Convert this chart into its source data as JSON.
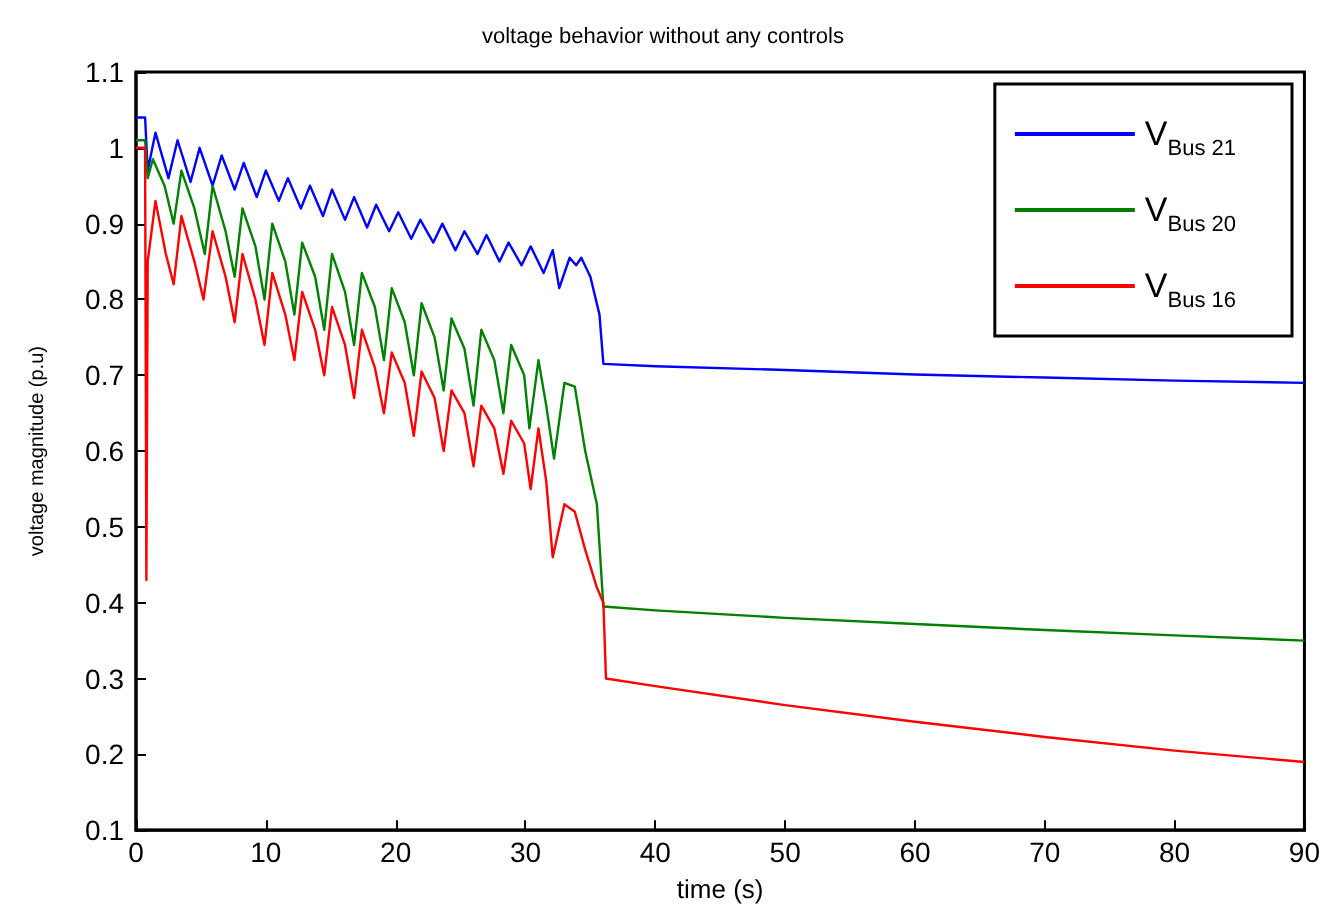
{
  "chart_data": {
    "type": "line",
    "title": "voltage behavior without any controls",
    "xlabel": "time (s)",
    "ylabel": "voltage magnitude (p.u)",
    "xlim": [
      0,
      90
    ],
    "xticks": [
      0,
      10,
      20,
      30,
      40,
      50,
      60,
      70,
      80,
      90
    ],
    "ylim": [
      0.1,
      1.1
    ],
    "yticks": [
      0.1,
      0.2,
      0.3,
      0.4,
      0.5,
      0.6,
      0.7,
      0.8,
      0.9,
      1,
      1.1
    ],
    "grid": false,
    "legend": "top right",
    "marker": "none",
    "line_style": "solid",
    "series": [
      {
        "name": "V$_{Bus 21}$",
        "color": "#0000ff",
        "x": [
          0,
          0.7,
          0.9,
          1.5,
          2.5,
          3.2,
          4.2,
          4.9,
          5.9,
          6.6,
          7.6,
          8.3,
          9.3,
          10,
          11,
          11.7,
          12.7,
          13.4,
          14.4,
          15.1,
          16.1,
          16.8,
          17.8,
          18.5,
          19.5,
          20.2,
          21.2,
          21.9,
          22.9,
          23.6,
          24.6,
          25.3,
          26.3,
          27,
          28,
          28.7,
          29.7,
          30.4,
          31.4,
          32.1,
          32.6,
          33.4,
          33.9,
          34.3,
          35,
          35.7,
          36,
          40,
          50,
          60,
          70,
          80,
          90
        ],
        "values": [
          1.04,
          1.04,
          0.97,
          1.02,
          0.96,
          1.01,
          0.955,
          1.0,
          0.95,
          0.99,
          0.945,
          0.98,
          0.935,
          0.97,
          0.93,
          0.96,
          0.92,
          0.95,
          0.91,
          0.945,
          0.905,
          0.935,
          0.895,
          0.925,
          0.89,
          0.915,
          0.88,
          0.905,
          0.875,
          0.9,
          0.865,
          0.89,
          0.86,
          0.885,
          0.85,
          0.875,
          0.845,
          0.87,
          0.835,
          0.865,
          0.815,
          0.855,
          0.845,
          0.855,
          0.83,
          0.78,
          0.715,
          0.712,
          0.707,
          0.701,
          0.697,
          0.693,
          0.69
        ]
      },
      {
        "name": "V$_{Bus 20}$",
        "color": "#008000",
        "x": [
          0,
          0.7,
          0.9,
          1.3,
          2.2,
          2.9,
          3.5,
          4.5,
          5.3,
          5.9,
          6.9,
          7.6,
          8.2,
          9.2,
          9.9,
          10.5,
          11.5,
          12.2,
          12.8,
          13.8,
          14.5,
          15.1,
          16.1,
          16.8,
          17.4,
          18.4,
          19.1,
          19.7,
          20.7,
          21.4,
          22,
          23,
          23.7,
          24.3,
          25.3,
          26,
          26.6,
          27.6,
          28.3,
          28.9,
          29.9,
          30.3,
          31,
          31.6,
          32.2,
          33,
          33.8,
          34.6,
          35.5,
          36,
          40,
          50,
          60,
          70,
          80,
          90
        ],
        "values": [
          1.01,
          1.01,
          0.96,
          0.985,
          0.95,
          0.9,
          0.97,
          0.92,
          0.86,
          0.95,
          0.89,
          0.83,
          0.92,
          0.87,
          0.8,
          0.9,
          0.85,
          0.78,
          0.875,
          0.83,
          0.76,
          0.86,
          0.81,
          0.74,
          0.835,
          0.79,
          0.72,
          0.815,
          0.77,
          0.7,
          0.795,
          0.75,
          0.68,
          0.775,
          0.735,
          0.66,
          0.76,
          0.72,
          0.65,
          0.74,
          0.7,
          0.63,
          0.72,
          0.66,
          0.59,
          0.69,
          0.685,
          0.6,
          0.53,
          0.395,
          0.39,
          0.38,
          0.372,
          0.364,
          0.357,
          0.35
        ]
      },
      {
        "name": "V$_{Bus 16}$",
        "color": "#ff0000",
        "x": [
          0,
          0.7,
          0.8,
          0.9,
          1.5,
          2.3,
          2.9,
          3.5,
          4.5,
          5.2,
          5.9,
          6.9,
          7.6,
          8.2,
          9.2,
          9.9,
          10.5,
          11.5,
          12.2,
          12.8,
          13.8,
          14.5,
          15.1,
          16.1,
          16.8,
          17.4,
          18.4,
          19.1,
          19.7,
          20.7,
          21.4,
          22,
          23,
          23.7,
          24.3,
          25.3,
          26,
          26.6,
          27.6,
          28.3,
          28.9,
          29.9,
          30.4,
          31,
          31.6,
          32.1,
          33,
          33.8,
          34.6,
          35.5,
          36,
          36.2,
          40,
          50,
          60,
          70,
          80,
          90
        ],
        "values": [
          1.0,
          1.0,
          0.43,
          0.85,
          0.93,
          0.86,
          0.82,
          0.91,
          0.85,
          0.8,
          0.89,
          0.83,
          0.77,
          0.86,
          0.8,
          0.74,
          0.835,
          0.78,
          0.72,
          0.81,
          0.76,
          0.7,
          0.79,
          0.74,
          0.67,
          0.76,
          0.71,
          0.65,
          0.73,
          0.69,
          0.62,
          0.705,
          0.67,
          0.6,
          0.68,
          0.65,
          0.58,
          0.66,
          0.63,
          0.57,
          0.64,
          0.61,
          0.55,
          0.63,
          0.56,
          0.46,
          0.53,
          0.52,
          0.47,
          0.42,
          0.4,
          0.3,
          0.29,
          0.265,
          0.243,
          0.223,
          0.205,
          0.19
        ]
      }
    ]
  }
}
